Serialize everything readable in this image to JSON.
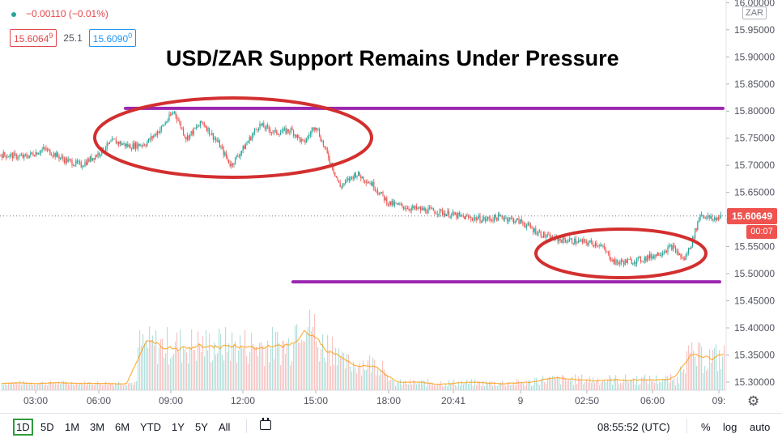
{
  "legend": {
    "change": "−0.00110 (−0.01%)"
  },
  "quote": {
    "bid": "15.6064",
    "bid_sup": "9",
    "spread": "25.1",
    "ask": "15.6090",
    "ask_sup": "0"
  },
  "currency_label": "ZAR",
  "title": "USD/ZAR Support Remains Under Pressure",
  "last_price": {
    "value": "15.60649",
    "countdown": "00:07"
  },
  "bottom": {
    "periods": [
      "1D",
      "5D",
      "1M",
      "3M",
      "6M",
      "YTD",
      "1Y",
      "5Y",
      "All"
    ],
    "active_period": "1D",
    "clock": "08:55:52 (UTC)",
    "percent": "%",
    "log": "log",
    "auto": "auto"
  },
  "colors": {
    "up": "#26a69a",
    "down": "#ef5350",
    "resistance_line": "#9c27b0",
    "annotation_ellipse": "#d32f2f",
    "volume_ma": "#ff9800"
  },
  "chart_data": {
    "type": "line",
    "title": "USD/ZAR Support Remains Under Pressure",
    "xlabel": "",
    "ylabel": "",
    "x_ticks": [
      "03:00",
      "06:00",
      "09:00",
      "12:00",
      "15:00",
      "18:00",
      "20:41",
      "9",
      "02:50",
      "06:00",
      "09:"
    ],
    "y_ticks": [
      15.3,
      15.35,
      15.4,
      15.45,
      15.5,
      15.55,
      15.6,
      15.65,
      15.7,
      15.75,
      15.8,
      15.85,
      15.9,
      15.95,
      16.0
    ],
    "ylim": [
      15.285,
      16.005
    ],
    "price_axis_side": "right",
    "grid": false,
    "series": [
      {
        "values": [
          [
            0,
            15.72
          ],
          [
            30,
            15.715
          ],
          [
            55,
            15.73
          ],
          [
            80,
            15.71
          ],
          [
            100,
            15.7
          ],
          [
            120,
            15.72
          ],
          [
            140,
            15.745
          ],
          [
            160,
            15.735
          ],
          [
            180,
            15.74
          ],
          [
            200,
            15.77
          ],
          [
            215,
            15.8
          ],
          [
            230,
            15.75
          ],
          [
            250,
            15.78
          ],
          [
            270,
            15.74
          ],
          [
            285,
            15.7
          ],
          [
            300,
            15.73
          ],
          [
            320,
            15.775
          ],
          [
            340,
            15.76
          ],
          [
            360,
            15.765
          ],
          [
            375,
            15.74
          ],
          [
            390,
            15.775
          ],
          [
            400,
            15.735
          ],
          [
            410,
            15.7
          ],
          [
            420,
            15.66
          ],
          [
            440,
            15.685
          ],
          [
            460,
            15.665
          ],
          [
            480,
            15.63
          ],
          [
            510,
            15.62
          ],
          [
            540,
            15.615
          ],
          [
            570,
            15.605
          ],
          [
            600,
            15.6
          ],
          [
            620,
            15.605
          ],
          [
            645,
            15.595
          ],
          [
            660,
            15.58
          ],
          [
            680,
            15.565
          ],
          [
            710,
            15.56
          ],
          [
            740,
            15.555
          ],
          [
            760,
            15.52
          ],
          [
            790,
            15.525
          ],
          [
            810,
            15.535
          ],
          [
            830,
            15.55
          ],
          [
            845,
            15.525
          ],
          [
            855,
            15.56
          ],
          [
            865,
            15.61
          ],
          [
            880,
            15.6
          ],
          [
            892,
            15.606
          ]
        ]
      }
    ],
    "horizontal_levels": [
      15.805,
      15.485
    ],
    "volume_note": "volume histogram with moving average overlay along the bottom"
  }
}
